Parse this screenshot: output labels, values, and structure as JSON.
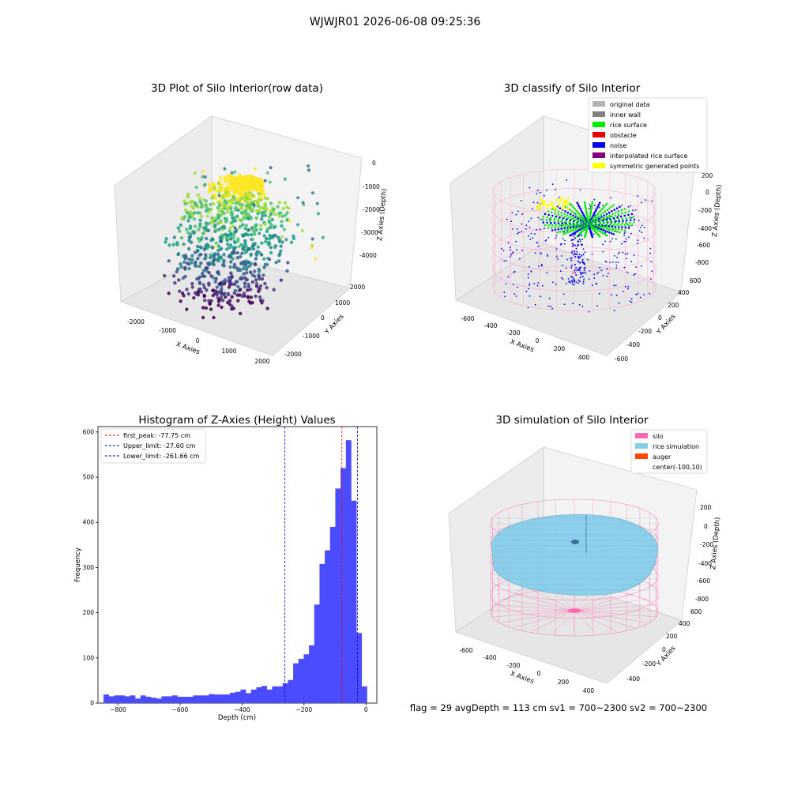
{
  "figure": {
    "suptitle": "WJWJR01 2026-06-08 09:25:36",
    "status_line": "flag = 29  avgDepth = 113 cm  sv1 = 700~2300  sv2 = 700~2300"
  },
  "chart_data": [
    {
      "type": "scatter",
      "title": "3D Plot of Silo Interior(row data)",
      "xlabel": "X Axies",
      "ylabel": "Y Axies",
      "zlabel": "Z Axies (Depth)",
      "x_ticks": [
        "-2000",
        "-1000",
        "0",
        "1000",
        "2000"
      ],
      "y_ticks": [
        "-2000",
        "-1000",
        "0",
        "1000",
        "2000"
      ],
      "z_ticks": [
        "0",
        "-1000",
        "-2000",
        "-3000",
        "-4000"
      ],
      "colormap": "viridis"
    },
    {
      "type": "scatter",
      "title": "3D classify of Silo Interior",
      "xlabel": "X Axies",
      "ylabel": "Y Axies",
      "zlabel": "Z Axies (Depth)",
      "x_ticks": [
        "-600",
        "-400",
        "-200",
        "0",
        "200",
        "400"
      ],
      "y_ticks": [
        "-600",
        "-400",
        "-200",
        "0",
        "200",
        "400",
        "600"
      ],
      "z_ticks": [
        "200",
        "0",
        "-200",
        "-400",
        "-600",
        "-800"
      ],
      "legend_position": "top-right",
      "legend": [
        {
          "label": "original data",
          "color": "#b3b3b3"
        },
        {
          "label": "inner wall",
          "color": "#808080"
        },
        {
          "label": "rice surface",
          "color": "#00ee00"
        },
        {
          "label": "obstacle",
          "color": "#ee0000"
        },
        {
          "label": "noise",
          "color": "#0000ee"
        },
        {
          "label": "interpolated rice surface",
          "color": "#800080"
        },
        {
          "label": "symmetric generated points",
          "color": "#ffff00"
        }
      ]
    },
    {
      "type": "bar",
      "title": "Histogram of Z-Axies (Height) Values",
      "xlabel": "Depth (cm)",
      "ylabel": "Frequency",
      "xlim": [
        -865,
        35
      ],
      "ylim": [
        0,
        612
      ],
      "x_ticks": [
        -800,
        -600,
        -400,
        -200,
        0
      ],
      "y_ticks": [
        0,
        100,
        200,
        300,
        400,
        500,
        600
      ],
      "bar_color": "#4b4bff",
      "bin_start": -847,
      "bin_width": 17,
      "values": [
        19,
        15,
        17,
        17,
        15,
        17,
        10,
        17,
        14,
        12,
        10,
        15,
        15,
        17,
        14,
        14,
        14,
        17,
        17,
        17,
        20,
        19,
        19,
        19,
        23,
        25,
        30,
        22,
        30,
        35,
        38,
        30,
        37,
        37,
        44,
        51,
        88,
        98,
        108,
        128,
        218,
        308,
        338,
        390,
        475,
        520,
        582,
        448,
        155,
        37
      ],
      "lines": [
        {
          "label": "first_peak: -77.75 cm",
          "x": -77.75,
          "color": "#ff0000"
        },
        {
          "label": "Upper_limit: -27.60 cm",
          "x": -27.6,
          "color": "#0000cc"
        },
        {
          "label": "Lower_limit: -261.66 cm",
          "x": -261.66,
          "color": "#0000cc"
        }
      ],
      "legend_position": "top-left"
    },
    {
      "type": "scatter",
      "title": "3D simulation of Silo Interior",
      "xlabel": "X Axies",
      "ylabel": "Y Axies",
      "zlabel": "Z Axies (Depth)",
      "x_ticks": [
        "-600",
        "-400",
        "-200",
        "0",
        "200",
        "400"
      ],
      "y_ticks": [
        "-400",
        "-200",
        "0",
        "200",
        "400",
        "600"
      ],
      "z_ticks": [
        "200",
        "0",
        "-200",
        "-400",
        "-600",
        "-800"
      ],
      "legend_position": "top-right",
      "legend": [
        {
          "label": "silo",
          "color": "#ff69b4"
        },
        {
          "label": "rice simulation",
          "color": "#87ceeb"
        },
        {
          "label": "auger",
          "color": "#ff4500"
        },
        {
          "label": "center(-100,10)",
          "color": ""
        }
      ]
    }
  ]
}
